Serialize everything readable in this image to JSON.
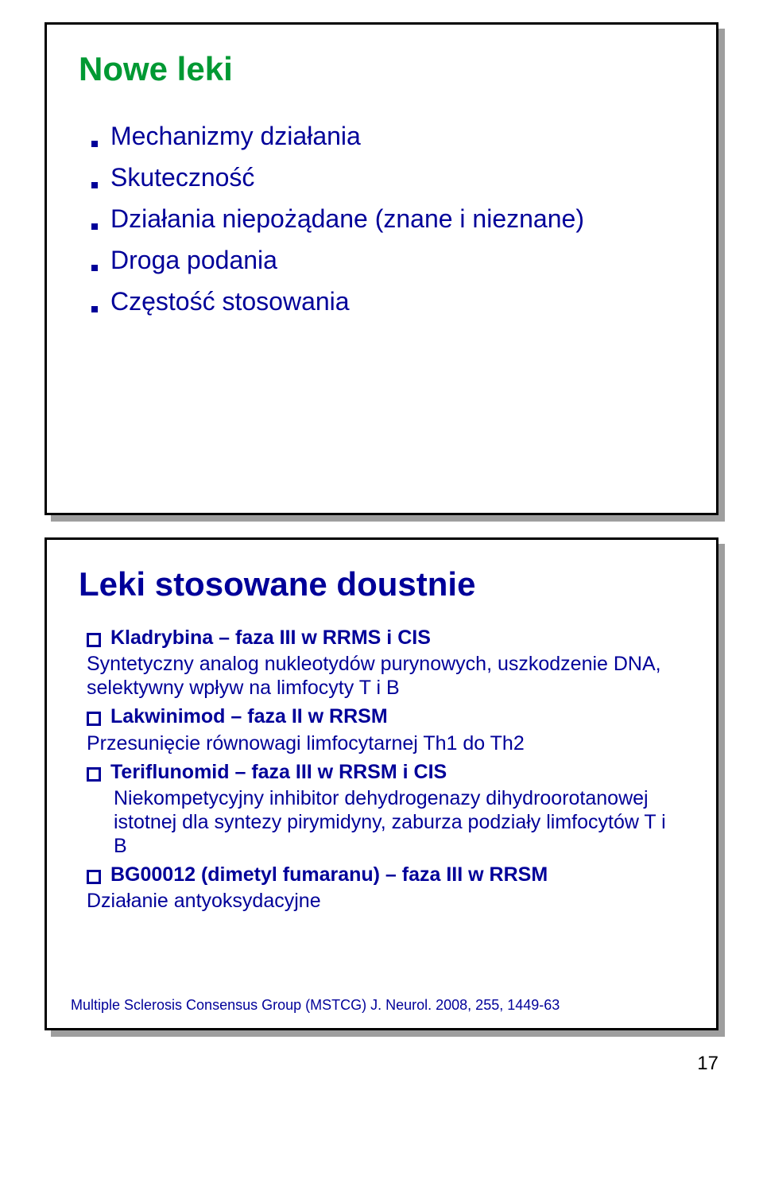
{
  "page_number": "17",
  "colors": {
    "title_green": "#009933",
    "body_blue": "#000099",
    "border": "#000000",
    "shadow": "#9e9e9e",
    "bg": "#ffffff"
  },
  "slide1": {
    "title": "Nowe leki",
    "bullets": [
      "Mechanizmy działania",
      "Skuteczność",
      "Działania niepożądane (znane i nieznane)",
      "Droga podania",
      "Częstość stosowania"
    ]
  },
  "slide2": {
    "title": "Leki stosowane doustnie",
    "items": [
      {
        "head": "Kladrybina – faza III w RRMS i CIS",
        "desc": "Syntetyczny analog nukleotydów purynowych, uszkodzenie DNA, selektywny wpływ na limfocyty T i B",
        "indent": false
      },
      {
        "head": "Lakwinimod – faza II w RRSM",
        "desc": "Przesunięcie równowagi limfocytarnej Th1 do Th2",
        "indent": false
      },
      {
        "head": "Teriflunomid – faza III w RRSM i CIS",
        "desc": "Niekompetycyjny inhibitor dehydrogenazy dihydroorotanowej istotnej dla syntezy pirymidyny, zaburza podziały limfocytów T i B",
        "indent": true
      },
      {
        "head": "BG00012 (dimetyl fumaranu) – faza III w RRSM",
        "desc": "Działanie antyoksydacyjne",
        "indent": false
      }
    ],
    "reference": "Multiple Sclerosis Consensus Group (MSTCG) J. Neurol. 2008, 255, 1449-63"
  }
}
